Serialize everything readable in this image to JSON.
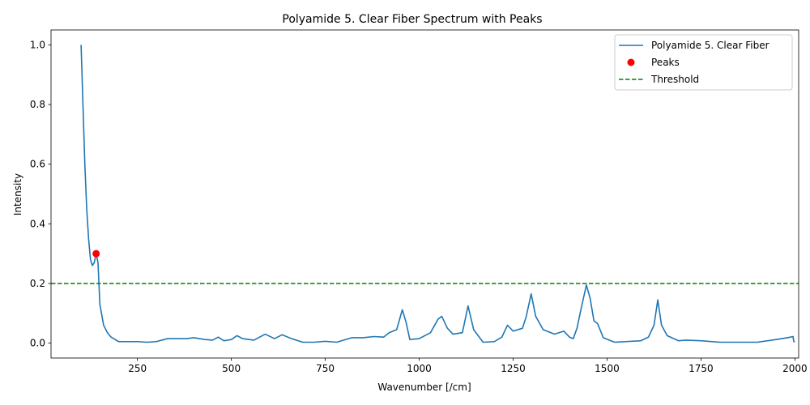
{
  "chart_data": {
    "type": "line",
    "title": "Polyamide 5. Clear Fiber Spectrum with Peaks",
    "xlabel": "Wavenumber [/cm]",
    "ylabel": "Intensity",
    "xlim": [
      20,
      2010
    ],
    "ylim": [
      -0.05,
      1.05
    ],
    "xticks": [
      250,
      500,
      750,
      1000,
      1250,
      1500,
      1750,
      2000
    ],
    "yticks": [
      0.0,
      0.2,
      0.4,
      0.6,
      0.8,
      1.0
    ],
    "xtick_labels": [
      "250",
      "500",
      "750",
      "1000",
      "1250",
      "1500",
      "1750",
      "2000"
    ],
    "ytick_labels": [
      "0.0",
      "0.2",
      "0.4",
      "0.6",
      "0.8",
      "1.0"
    ],
    "grid": false,
    "legend_position": "top-right",
    "series": [
      {
        "name": "Polyamide 5. Clear Fiber",
        "kind": "line",
        "color": "#1f77b4",
        "x": [
          100,
          105,
          110,
          115,
          120,
          125,
          130,
          135,
          140,
          145,
          150,
          160,
          170,
          180,
          200,
          250,
          275,
          300,
          330,
          360,
          380,
          400,
          430,
          450,
          465,
          480,
          500,
          515,
          530,
          560,
          590,
          615,
          635,
          660,
          690,
          720,
          750,
          780,
          820,
          850,
          880,
          905,
          920,
          940,
          955,
          965,
          975,
          1000,
          1030,
          1050,
          1060,
          1075,
          1090,
          1115,
          1130,
          1145,
          1170,
          1200,
          1220,
          1235,
          1250,
          1275,
          1285,
          1298,
          1310,
          1330,
          1360,
          1385,
          1400,
          1410,
          1420,
          1430,
          1445,
          1455,
          1465,
          1475,
          1490,
          1520,
          1550,
          1590,
          1610,
          1625,
          1635,
          1645,
          1660,
          1690,
          1710,
          1750,
          1800,
          1850,
          1900,
          1950,
          1980,
          1995,
          1997,
          2000
        ],
        "y": [
          1.0,
          0.8,
          0.6,
          0.45,
          0.35,
          0.28,
          0.26,
          0.27,
          0.3,
          0.27,
          0.13,
          0.06,
          0.035,
          0.02,
          0.005,
          0.005,
          0.003,
          0.005,
          0.015,
          0.015,
          0.015,
          0.018,
          0.012,
          0.01,
          0.02,
          0.008,
          0.012,
          0.025,
          0.015,
          0.01,
          0.03,
          0.015,
          0.028,
          0.015,
          0.003,
          0.003,
          0.006,
          0.003,
          0.018,
          0.018,
          0.022,
          0.02,
          0.035,
          0.045,
          0.112,
          0.07,
          0.012,
          0.015,
          0.035,
          0.08,
          0.09,
          0.05,
          0.03,
          0.035,
          0.125,
          0.045,
          0.003,
          0.005,
          0.02,
          0.06,
          0.04,
          0.05,
          0.09,
          0.165,
          0.09,
          0.045,
          0.03,
          0.04,
          0.02,
          0.015,
          0.05,
          0.11,
          0.195,
          0.15,
          0.075,
          0.065,
          0.018,
          0.003,
          0.005,
          0.008,
          0.02,
          0.06,
          0.145,
          0.06,
          0.025,
          0.008,
          0.01,
          0.008,
          0.003,
          0.003,
          0.003,
          0.012,
          0.018,
          0.022,
          0.005,
          0.005
        ]
      },
      {
        "name": "Peaks",
        "kind": "scatter",
        "color": "#ff0000",
        "x": [
          140
        ],
        "y": [
          0.3
        ]
      },
      {
        "name": "Threshold",
        "kind": "hline",
        "color": "#008000",
        "y": 0.2
      }
    ]
  }
}
